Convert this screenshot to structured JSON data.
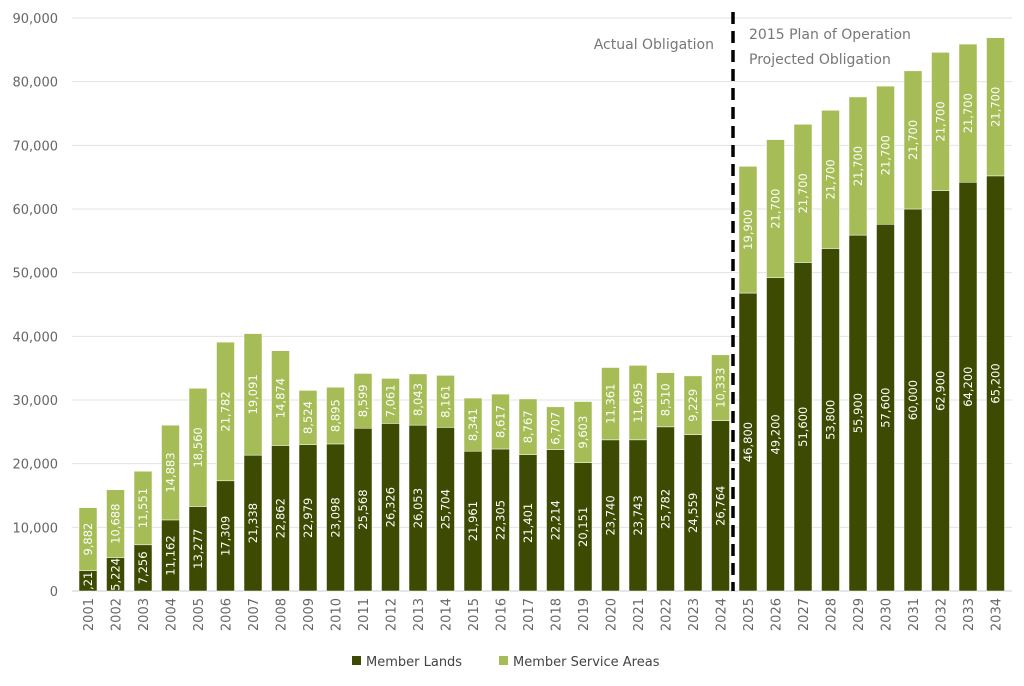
{
  "chart_data": {
    "type": "bar",
    "stacked": true,
    "categories": [
      "2001",
      "2002",
      "2003",
      "2004",
      "2005",
      "2006",
      "2007",
      "2008",
      "2009",
      "2010",
      "2011",
      "2012",
      "2013",
      "2014",
      "2015",
      "2016",
      "2017",
      "2018",
      "2019",
      "2020",
      "2021",
      "2022",
      "2023",
      "2024",
      "2025",
      "2026",
      "2027",
      "2028",
      "2029",
      "2030",
      "2031",
      "2032",
      "2033",
      "2034"
    ],
    "series": [
      {
        "name": "Member Lands",
        "color": "#3d4a02",
        "values": [
          3213,
          5224,
          7256,
          11162,
          13277,
          17309,
          21338,
          22862,
          22979,
          23098,
          25568,
          26326,
          26053,
          25704,
          21961,
          22305,
          21401,
          22214,
          20151,
          23740,
          23743,
          25782,
          24559,
          26764,
          46800,
          49200,
          51600,
          53800,
          55900,
          57600,
          60000,
          62900,
          64200,
          65200
        ]
      },
      {
        "name": "Member Service Areas",
        "color": "#a6bd57",
        "values": [
          9882,
          10688,
          11551,
          14883,
          18560,
          21782,
          19091,
          14874,
          8524,
          8895,
          8599,
          7061,
          8043,
          8161,
          8341,
          8617,
          8767,
          6707,
          9603,
          11361,
          11695,
          8510,
          9229,
          10333,
          19900,
          21700,
          21700,
          21700,
          21700,
          21700,
          21700,
          21700,
          21700,
          21700
        ]
      }
    ],
    "ylim": [
      0,
      90000
    ],
    "yticks": [
      "0",
      "10,000",
      "20,000",
      "30,000",
      "40,000",
      "50,000",
      "60,000",
      "70,000",
      "80,000",
      "90,000"
    ],
    "grid": true,
    "legend_placement": "bottom",
    "divider_between": [
      "2024",
      "2025"
    ],
    "annotations": {
      "actual": "Actual Obligation",
      "plan": "2015 Plan of Operation",
      "projected": "Projected Obligation"
    },
    "data_labels": true
  }
}
